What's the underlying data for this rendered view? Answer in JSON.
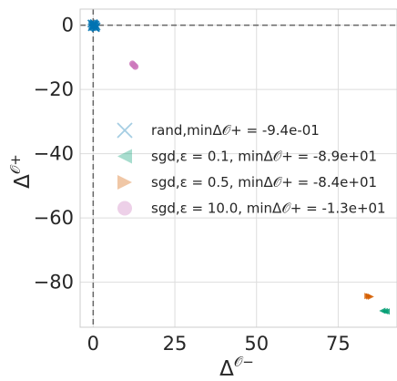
{
  "chart_data": {
    "type": "scatter",
    "title": "",
    "xlabel_base": "Δ",
    "xlabel_sup": "𝒪−",
    "ylabel_base": "Δ",
    "ylabel_sup": "𝒪+",
    "xlim": [
      -4,
      93
    ],
    "ylim": [
      -94,
      5
    ],
    "xticks": [
      0,
      25,
      50,
      75
    ],
    "yticks": [
      0,
      -20,
      -40,
      -60,
      -80
    ],
    "xtick_labels": [
      "0",
      "25",
      "50",
      "75"
    ],
    "ytick_labels": [
      "0",
      "−20",
      "−40",
      "−60",
      "−80"
    ],
    "grid": true,
    "reference_lines": {
      "x": 0,
      "y": 0,
      "style": "dashed"
    },
    "legend_position": "center-left",
    "series": [
      {
        "marker": "x",
        "color": "#0173b2",
        "legend": "rand,minΔ𝒪+ = -9.4e-01",
        "points": [
          [
            -0.5,
            0.5
          ],
          [
            0.0,
            0.2
          ],
          [
            0.3,
            -0.3
          ],
          [
            0.6,
            -0.7
          ],
          [
            -0.2,
            -0.1
          ],
          [
            0.4,
            0.3
          ],
          [
            0.8,
            -0.9
          ],
          [
            0.1,
            -0.5
          ],
          [
            -0.4,
            -0.6
          ],
          [
            0.7,
            0.1
          ],
          [
            1.0,
            -0.4
          ],
          [
            0.2,
            0.6
          ]
        ]
      },
      {
        "marker": "triangle-left",
        "color": "#029e73",
        "legend": "sgd,ε = 0.1, minΔ𝒪+ = -8.9e+01",
        "points": [
          [
            88.5,
            -88.9
          ],
          [
            89.2,
            -89.0
          ],
          [
            89.8,
            -89.1
          ]
        ]
      },
      {
        "marker": "triangle-right",
        "color": "#d55e00",
        "legend": "sgd,ε = 0.5, minΔ𝒪+ = -8.4e+01",
        "points": [
          [
            84.0,
            -84.3
          ],
          [
            84.5,
            -84.4
          ],
          [
            85.0,
            -84.5
          ]
        ]
      },
      {
        "marker": "circle",
        "color": "#cc78bc",
        "legend": "sgd,ε = 10.0, minΔ𝒪+ = -1.3e+01",
        "points": [
          [
            12.0,
            -12.0
          ],
          [
            12.3,
            -12.3
          ],
          [
            12.6,
            -12.6
          ],
          [
            12.9,
            -12.9
          ]
        ]
      }
    ]
  }
}
